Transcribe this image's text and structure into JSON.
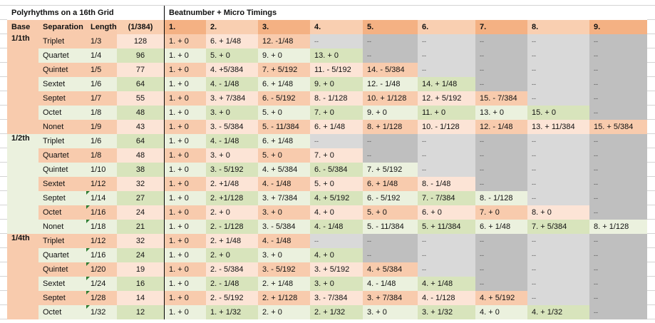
{
  "title": "Polyrhythms on a 16th Grid",
  "beats_title": "Beatnumber +  Micro Timings",
  "headers": [
    "Base",
    "Separation",
    "Length",
    "(1/384)",
    "1.",
    "2.",
    "3.",
    "4.",
    "5.",
    "6.",
    "7.",
    "8.",
    "9."
  ],
  "colors": {
    "orange_dark": "#f8cbad",
    "orange_light": "#fce4d6",
    "green_dark": "#d8e4bc",
    "green_light": "#ebf1de",
    "gray_light": "#d9d9d9",
    "gray_dark": "#bfbfbf",
    "header_dark": "#f4b183",
    "header_light": "#f9cfb1"
  },
  "groups": [
    {
      "base": "1/1th",
      "color": "orange",
      "rows": [
        {
          "sep": "Triplet",
          "length": "1/3",
          "ticks": "128",
          "tone": "orange",
          "comment": false,
          "beats": [
            "1. + 0",
            "6. + 1/48",
            "12. -1/48",
            "--",
            "--",
            "--",
            "--",
            "--",
            "--"
          ]
        },
        {
          "sep": "Quartet",
          "length": "1/4",
          "ticks": "96",
          "tone": "green",
          "comment": false,
          "beats": [
            "1. + 0",
            "5. + 0",
            "9. + 0",
            "13. + 0",
            "--",
            "--",
            "--",
            "--",
            "--"
          ]
        },
        {
          "sep": "Quintet",
          "length": "1/5",
          "ticks": "77",
          "tone": "orange",
          "comment": false,
          "beats": [
            "1. + 0",
            "4. +5/384",
            "7. + 5/192",
            "11. - 5/192",
            "14. - 5/384",
            "--",
            "--",
            "--",
            "--"
          ]
        },
        {
          "sep": "Sextet",
          "length": "1/6",
          "ticks": "64",
          "tone": "green",
          "comment": false,
          "beats": [
            "1. + 0",
            "4. - 1/48",
            "6. + 1/48",
            "9. + 0",
            "12. - 1/48",
            "14. + 1/48",
            "--",
            "--",
            "--"
          ]
        },
        {
          "sep": "Septet",
          "length": "1/7",
          "ticks": "55",
          "tone": "orange",
          "comment": false,
          "beats": [
            "1. + 0",
            "3. + 7/384",
            "6. - 5/192",
            "8. - 1/128",
            "10. + 1/128",
            "12. + 5/192",
            "15. - 7/384",
            "--",
            "--"
          ]
        },
        {
          "sep": "Octet",
          "length": "1/8",
          "ticks": "48",
          "tone": "green",
          "comment": false,
          "beats": [
            "1. + 0",
            "3. + 0",
            "5. + 0",
            "7. + 0",
            "9. + 0",
            "11. + 0",
            "13. + 0",
            "15. + 0",
            "--"
          ]
        },
        {
          "sep": "Nonet",
          "length": "1/9",
          "ticks": "43",
          "tone": "orange",
          "comment": false,
          "beats": [
            "1. + 0",
            "3. - 5/384",
            "5. - 11/384",
            "6. + 1/48",
            "8. + 1/128",
            "10. - 1/128",
            "12. - 1/48",
            "13. + 11/384",
            "15. + 5/384"
          ]
        }
      ]
    },
    {
      "base": "1/2th",
      "color": "green",
      "rows": [
        {
          "sep": "Triplet",
          "length": "1/6",
          "ticks": "64",
          "tone": "green",
          "comment": false,
          "beats": [
            "1. + 0",
            "4. - 1/48",
            "6. + 1/48",
            "--",
            "--",
            "--",
            "--",
            "--",
            "--"
          ]
        },
        {
          "sep": "Quartet",
          "length": "1/8",
          "ticks": "48",
          "tone": "orange",
          "comment": false,
          "beats": [
            "1. + 0",
            "3. + 0",
            "5. + 0",
            "7. + 0",
            "--",
            "--",
            "--",
            "--",
            "--"
          ]
        },
        {
          "sep": "Quintet",
          "length": "1/10",
          "ticks": "38",
          "tone": "green",
          "comment": false,
          "beats": [
            "1. + 0",
            "3. - 5/192",
            "4. + 5/384",
            "6. - 5/384",
            "7. + 5/192",
            "--",
            "--",
            "--",
            "--"
          ]
        },
        {
          "sep": "Sextet",
          "length": "1/12",
          "ticks": "32",
          "tone": "orange",
          "comment": false,
          "beats": [
            "1. + 0",
            "2. +1/48",
            "4. - 1/48",
            "5. + 0",
            "6. + 1/48",
            "8. - 1/48",
            "--",
            "--",
            "--"
          ]
        },
        {
          "sep": "Septet",
          "length": "1/14",
          "ticks": "27",
          "tone": "green",
          "comment": true,
          "beats": [
            "1. + 0",
            "2. +1/128",
            "3. + 7/384",
            "4. + 5/192",
            "6. - 5/192",
            "7. - 7/384",
            "8. - 1/128",
            "--",
            "--"
          ]
        },
        {
          "sep": "Octet",
          "length": "1/16",
          "ticks": "24",
          "tone": "orange",
          "comment": true,
          "beats": [
            "1. + 0",
            "2. + 0",
            "3. + 0",
            "4. + 0",
            "5. + 0",
            "6. + 0",
            "7. + 0",
            "8. + 0",
            "--"
          ]
        },
        {
          "sep": "Nonet",
          "length": "1/18",
          "ticks": "21",
          "tone": "green",
          "comment": true,
          "beats": [
            "1. + 0",
            "2. - 1/128",
            "3. - 5/384",
            "4. - 1/48",
            "5. - 11/384",
            "5. + 11/384",
            "6. + 1/48",
            "7. + 5/384",
            "8. + 1/128"
          ]
        }
      ]
    },
    {
      "base": "1/4th",
      "color": "orange",
      "rows": [
        {
          "sep": "Triplet",
          "length": "1/12",
          "ticks": "32",
          "tone": "orange",
          "comment": false,
          "beats": [
            "1. + 0",
            "2. + 1/48",
            "4. - 1/48",
            "--",
            "--",
            "--",
            "--",
            "--",
            "--"
          ]
        },
        {
          "sep": "Quartet",
          "length": "1/16",
          "ticks": "24",
          "tone": "green",
          "comment": true,
          "beats": [
            "1. + 0",
            "2. + 0",
            "3. + 0",
            "4. + 0",
            "--",
            "--",
            "--",
            "--",
            "--"
          ]
        },
        {
          "sep": "Quintet",
          "length": "1/20",
          "ticks": "19",
          "tone": "orange",
          "comment": true,
          "beats": [
            "1. + 0",
            "2. - 5/384",
            "3. - 5/192",
            "3. + 5/192",
            "4. + 5/384",
            "--",
            "--",
            "--",
            "--"
          ]
        },
        {
          "sep": "Sextet",
          "length": "1/24",
          "ticks": "16",
          "tone": "green",
          "comment": true,
          "beats": [
            "1. + 0",
            "2. - 1/48",
            "2. + 1/48",
            "3. + 0",
            "4. - 1/48",
            "4. + 1/48",
            "--",
            "--",
            "--"
          ]
        },
        {
          "sep": "Septet",
          "length": "1/28",
          "ticks": "14",
          "tone": "orange",
          "comment": true,
          "beats": [
            "1. + 0",
            "2. - 5/192",
            "2. + 1/128",
            "3. - 7/384",
            "3. + 7/384",
            "4. - 1/128",
            "4. + 5/192",
            "--",
            "--"
          ]
        },
        {
          "sep": "Octet",
          "length": "1/32",
          "ticks": "12",
          "tone": "green",
          "comment": true,
          "beats": [
            "1. + 0",
            "1. + 1/32",
            "2. + 0",
            "2. + 1/32",
            "3. + 0",
            "3. + 1/32",
            "4. + 0",
            "4. + 1/32",
            "--"
          ]
        }
      ]
    }
  ]
}
